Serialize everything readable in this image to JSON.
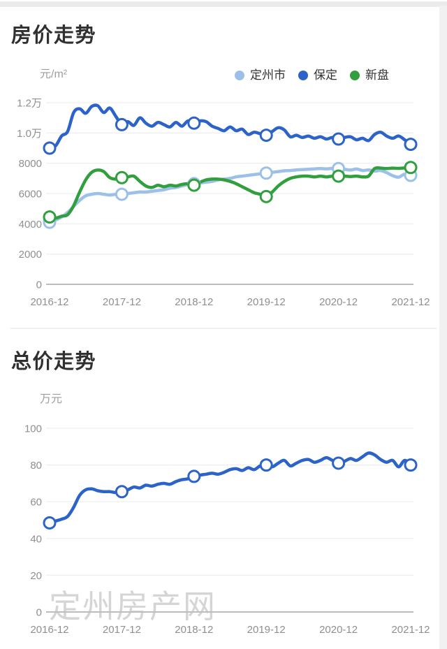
{
  "price_section": {
    "title": "房价走势",
    "unit": "元/m²"
  },
  "total_section": {
    "title": "总价走势",
    "unit": "万元"
  },
  "legend": {
    "items": [
      {
        "id": "dingzhou",
        "label": "定州市",
        "color": "#9dc0e8"
      },
      {
        "id": "baoding",
        "label": "保定",
        "color": "#2b63c9"
      },
      {
        "id": "xinpan",
        "label": "新盘",
        "color": "#319f3e"
      }
    ]
  },
  "watermark": {
    "text": "定州房产网"
  },
  "colors": {
    "grid": "#ededed",
    "axis": "#bdbdbd",
    "tick_text": "#8f8f8f"
  },
  "chart_data": [
    {
      "type": "line",
      "title": "房价走势",
      "ylabel": "元/m²",
      "ylim": [
        0,
        12000
      ],
      "grid": true,
      "legend_position": "top-right",
      "x_ticks": [
        "2016-12",
        "2017-12",
        "2018-12",
        "2019-12",
        "2020-12",
        "2021-12"
      ],
      "y_ticks": [
        {
          "v": 0,
          "label": "0"
        },
        {
          "v": 2000,
          "label": "2000"
        },
        {
          "v": 4000,
          "label": "4000"
        },
        {
          "v": 6000,
          "label": "6000"
        },
        {
          "v": 8000,
          "label": "8000"
        },
        {
          "v": 10000,
          "label": "1.0万"
        },
        {
          "v": 12000,
          "label": "1.2万"
        }
      ],
      "marker_indices": [
        0,
        12,
        24,
        36,
        48,
        60
      ],
      "series": [
        {
          "id": "dingzhou",
          "name": "定州市",
          "color": "#9dc0e8",
          "values": [
            4100,
            4250,
            4450,
            4750,
            5150,
            5550,
            5850,
            5950,
            6000,
            5950,
            5900,
            5950,
            5950,
            6000,
            6050,
            6100,
            6100,
            6150,
            6200,
            6250,
            6350,
            6400,
            6500,
            6600,
            6650,
            6700,
            6750,
            6800,
            6900,
            6950,
            7000,
            7100,
            7150,
            7200,
            7250,
            7300,
            7350,
            7400,
            7450,
            7500,
            7520,
            7560,
            7580,
            7600,
            7630,
            7650,
            7630,
            7660,
            7650,
            7600,
            7550,
            7620,
            7520,
            7560,
            7480,
            7520,
            7380,
            7180,
            7080,
            7280,
            7200
          ]
        },
        {
          "id": "baoding",
          "name": "保定",
          "color": "#2b63c9",
          "values": [
            9000,
            9150,
            9800,
            10100,
            11350,
            11600,
            11300,
            11750,
            11800,
            11350,
            11650,
            11100,
            10550,
            10750,
            10500,
            11000,
            10650,
            10450,
            10700,
            10550,
            10400,
            10700,
            10450,
            10800,
            10650,
            10800,
            10750,
            10450,
            10300,
            10150,
            10400,
            10150,
            10250,
            9900,
            10050,
            9950,
            9850,
            10100,
            10350,
            10200,
            9750,
            9850,
            9700,
            9800,
            9650,
            9750,
            9600,
            9700,
            9600,
            9700,
            9750,
            9550,
            9650,
            9500,
            9900,
            10050,
            9800,
            9650,
            9800,
            9550,
            9250
          ]
        },
        {
          "id": "xinpan",
          "name": "新盘",
          "color": "#319f3e",
          "values": [
            4450,
            4380,
            4500,
            4600,
            5200,
            6100,
            6900,
            7400,
            7550,
            7450,
            7050,
            6950,
            7050,
            7100,
            7150,
            6800,
            6500,
            6400,
            6550,
            6450,
            6550,
            6500,
            6600,
            6650,
            6550,
            6750,
            6900,
            6950,
            6950,
            6900,
            6800,
            6650,
            6450,
            6250,
            6050,
            5950,
            5800,
            6100,
            6500,
            6800,
            7000,
            7100,
            7150,
            7150,
            7100,
            7150,
            7100,
            7150,
            7150,
            7150,
            7120,
            7150,
            7100,
            7150,
            7650,
            7680,
            7650,
            7680,
            7660,
            7690,
            7720
          ]
        }
      ]
    },
    {
      "type": "line",
      "title": "总价走势",
      "ylabel": "万元",
      "ylim": [
        0,
        100
      ],
      "grid": true,
      "x_ticks": [
        "2016-12",
        "2017-12",
        "2018-12",
        "2019-12",
        "2020-12",
        "2021-12"
      ],
      "y_ticks": [
        {
          "v": 0,
          "label": "0"
        },
        {
          "v": 20,
          "label": "20"
        },
        {
          "v": 40,
          "label": "40"
        },
        {
          "v": 60,
          "label": "60"
        },
        {
          "v": 80,
          "label": "80"
        },
        {
          "v": 100,
          "label": "100"
        }
      ],
      "marker_indices": [
        0,
        12,
        24,
        36,
        48,
        60
      ],
      "series": [
        {
          "id": "baoding-total",
          "name": "保定",
          "color": "#2b63c9",
          "values": [
            48.5,
            49.5,
            50.5,
            52,
            57,
            63.5,
            66.5,
            67,
            66,
            65.5,
            65.5,
            65,
            65.5,
            66.5,
            68,
            67.5,
            69,
            68.5,
            69.5,
            70,
            69.5,
            71,
            72,
            72.5,
            73.8,
            74.5,
            75,
            75.5,
            75,
            76,
            77.5,
            78,
            77,
            78.5,
            77.5,
            79.5,
            80,
            79,
            81,
            82.5,
            79.5,
            81,
            82.5,
            83,
            81.5,
            82.5,
            84,
            82.5,
            81,
            82,
            83.5,
            82.5,
            84.5,
            86.5,
            85.5,
            83,
            81.5,
            82.5,
            79,
            82.5,
            80
          ]
        }
      ]
    }
  ]
}
